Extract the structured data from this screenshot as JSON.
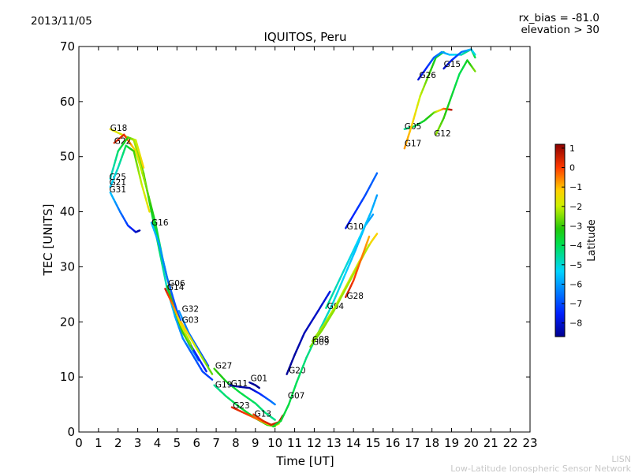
{
  "header": {
    "date": "2013/11/05",
    "rx_bias": "rx_bias = -81.0",
    "elevation": "elevation > 30"
  },
  "footer": {
    "line1": "LISN",
    "line2": "Low-Latitude Ionospheric Sensor Network"
  },
  "colorbar": {
    "label": "Latitude",
    "min": -8.7,
    "max": 1.2,
    "ticks": [
      1,
      0,
      -1,
      -2,
      -3,
      -4,
      -5,
      -6,
      -7,
      -8
    ],
    "tick_labels": [
      "1",
      "0",
      "−1",
      "−2",
      "−3",
      "−4",
      "−5",
      "−6",
      "−7",
      "−8"
    ]
  },
  "chart_data": {
    "type": "scatter",
    "title": "IQUITOS, Peru",
    "xlabel": "Time [UT]",
    "ylabel": "TEC [UNITS]",
    "xlim": [
      0,
      23
    ],
    "ylim": [
      0,
      70
    ],
    "xticks": [
      0,
      1,
      2,
      3,
      4,
      5,
      6,
      7,
      8,
      9,
      10,
      11,
      12,
      13,
      14,
      15,
      16,
      17,
      18,
      19,
      20,
      21,
      22,
      23
    ],
    "xtick_labels": [
      "0",
      "1",
      "2",
      "3",
      "4",
      "5",
      "6",
      "7",
      "8",
      "9",
      "10",
      "11",
      "12",
      "13",
      "14",
      "15",
      "16",
      "17",
      "18",
      "19",
      "20",
      "21",
      "22",
      "23"
    ],
    "yticks": [
      0,
      10,
      20,
      30,
      40,
      50,
      60,
      70
    ],
    "ytick_labels": [
      "0",
      "10",
      "20",
      "30",
      "40",
      "50",
      "60",
      "70"
    ],
    "color_by": "Latitude",
    "series": [
      {
        "name": "G18",
        "label_at": [
          1.6,
          54.7
        ],
        "points": [
          [
            1.6,
            55
          ],
          [
            2.2,
            54
          ],
          [
            2.8,
            53
          ],
          [
            3.3,
            47
          ],
          [
            3.7,
            40
          ],
          [
            4.1,
            33
          ],
          [
            4.5,
            26
          ],
          [
            4.9,
            21
          ],
          [
            5.3,
            17
          ],
          [
            5.8,
            14
          ],
          [
            6.3,
            11
          ],
          [
            6.8,
            9.5
          ]
        ],
        "lats": [
          -1.5,
          -1.8,
          -2.2,
          -2.8,
          -3.5,
          -4.2,
          -5,
          -5.8,
          -6.3,
          -6.8,
          -7,
          -7.2
        ]
      },
      {
        "name": "G22",
        "label_at": [
          1.8,
          52.3
        ],
        "points": [
          [
            1.8,
            52.5
          ],
          [
            2.3,
            54
          ],
          [
            2.9,
            51
          ],
          [
            3.4,
            45
          ],
          [
            3.9,
            38
          ],
          [
            4.3,
            31
          ],
          [
            4.7,
            25
          ],
          [
            5.1,
            20
          ],
          [
            5.6,
            16
          ],
          [
            6.1,
            13
          ]
        ],
        "lats": [
          0.3,
          0.4,
          -1.5,
          -2.5,
          -3.5,
          -4.5,
          -0.3,
          0.3,
          -6,
          -6.5
        ]
      },
      {
        "name": "G25",
        "label_at": [
          1.55,
          45.8
        ],
        "points": [
          [
            1.6,
            46
          ],
          [
            2.0,
            51
          ],
          [
            2.5,
            53.5
          ],
          [
            2.9,
            53
          ],
          [
            3.3,
            48
          ]
        ],
        "lats": [
          -5,
          -4.2,
          -3,
          -2,
          -1.2
        ]
      },
      {
        "name": "G21",
        "label_at": [
          1.55,
          44.8
        ],
        "points": [
          [
            1.6,
            44.5
          ],
          [
            2.0,
            48
          ],
          [
            2.4,
            52
          ],
          [
            2.8,
            51
          ],
          [
            3.2,
            45
          ],
          [
            3.6,
            40
          ]
        ],
        "lats": [
          -5.5,
          -4.8,
          -4,
          -3,
          -2,
          -1.5
        ]
      },
      {
        "name": "G31",
        "label_at": [
          1.55,
          43.5
        ],
        "points": [
          [
            1.6,
            43.5
          ],
          [
            2.1,
            40
          ],
          [
            2.5,
            37.5
          ],
          [
            2.9,
            36.3
          ],
          [
            3.1,
            36.6
          ]
        ],
        "lats": [
          -5.5,
          -6.5,
          -7.2,
          -8,
          -8.5
        ]
      },
      {
        "name": "G16",
        "label_at": [
          3.7,
          37.5
        ],
        "points": [
          [
            3.7,
            38
          ],
          [
            4.1,
            34
          ],
          [
            4.5,
            28
          ],
          [
            5.0,
            22
          ],
          [
            5.5,
            17
          ],
          [
            6.0,
            14
          ],
          [
            6.5,
            11
          ]
        ],
        "lats": [
          -5.5,
          -6,
          -6.5,
          -7,
          -7.3,
          -7.5,
          -7.6
        ]
      },
      {
        "name": "G06",
        "label_at": [
          4.55,
          26.5
        ],
        "points": [
          [
            4.5,
            26.5
          ],
          [
            4.9,
            22
          ],
          [
            5.3,
            18
          ],
          [
            5.8,
            15
          ]
        ],
        "lats": [
          -3.5,
          -3.2,
          -3,
          -2.8
        ]
      },
      {
        "name": "G14",
        "label_at": [
          4.5,
          25.8
        ],
        "points": [
          [
            4.4,
            26
          ],
          [
            4.8,
            23
          ],
          [
            5.2,
            19.5
          ],
          [
            5.7,
            16
          ]
        ],
        "lats": [
          0.6,
          -0.5,
          -1.5,
          -2.5
        ]
      },
      {
        "name": "G32",
        "label_at": [
          5.25,
          21.8
        ],
        "points": [
          [
            5.1,
            22
          ],
          [
            5.6,
            18
          ],
          [
            6.1,
            15
          ],
          [
            6.6,
            12
          ]
        ],
        "lats": [
          -6,
          -6.5,
          -6.8,
          -7
        ]
      },
      {
        "name": "G03",
        "label_at": [
          5.25,
          19.8
        ],
        "points": [
          [
            5.2,
            20
          ],
          [
            5.7,
            17
          ],
          [
            6.2,
            14
          ],
          [
            6.8,
            10.5
          ]
        ],
        "lats": [
          -1,
          -1.6,
          -2.2,
          -2.8
        ]
      },
      {
        "name": "G27",
        "label_at": [
          6.95,
          11.5
        ],
        "points": [
          [
            6.9,
            11.5
          ],
          [
            7.5,
            9.2
          ],
          [
            8.2,
            7.2
          ],
          [
            9.0,
            5.2
          ],
          [
            9.5,
            3.5
          ],
          [
            10.0,
            2.2
          ]
        ],
        "lats": [
          -3,
          -3.4,
          -3.8,
          -4.1,
          -4.3,
          -4.4
        ]
      },
      {
        "name": "G19",
        "label_at": [
          6.95,
          8.1
        ],
        "points": [
          [
            6.9,
            8.5
          ],
          [
            7.5,
            6.5
          ],
          [
            8.2,
            4.5
          ],
          [
            9.0,
            2.5
          ],
          [
            9.6,
            1.3
          ],
          [
            10.0,
            1.0
          ]
        ],
        "lats": [
          -4.5,
          -4.2,
          -3.8,
          -3.3,
          -2.9,
          -2.6
        ]
      },
      {
        "name": "G11",
        "label_at": [
          7.75,
          8.3
        ],
        "points": [
          [
            7.7,
            8.5
          ],
          [
            8.2,
            8.2
          ],
          [
            8.7,
            8.0
          ],
          [
            9.2,
            7.0
          ],
          [
            9.7,
            5.8
          ],
          [
            10.0,
            5.0
          ]
        ],
        "lats": [
          -8.3,
          -8.4,
          -8.5,
          -7.5,
          -6.8,
          -6.3
        ]
      },
      {
        "name": "G01",
        "label_at": [
          8.75,
          9.2
        ],
        "points": [
          [
            8.7,
            9
          ],
          [
            9.0,
            8.5
          ],
          [
            9.2,
            8.0
          ]
        ],
        "lats": [
          -8.5,
          -8.6,
          -8.7
        ]
      },
      {
        "name": "G23",
        "label_at": [
          7.85,
          4.3
        ],
        "points": [
          [
            7.8,
            4.5
          ],
          [
            8.4,
            3.5
          ],
          [
            9.0,
            2.5
          ],
          [
            9.6,
            1.5
          ],
          [
            10.0,
            1.2
          ],
          [
            10.2,
            1.5
          ]
        ],
        "lats": [
          0.4,
          0.2,
          -0.3,
          -0.9,
          -1.4,
          -1.6
        ]
      },
      {
        "name": "G13",
        "label_at": [
          8.95,
          2.8
        ],
        "points": [
          [
            8.9,
            3.2
          ],
          [
            9.4,
            2.0
          ],
          [
            9.8,
            1.3
          ],
          [
            10.2,
            1.8
          ],
          [
            10.4,
            3.0
          ]
        ],
        "lats": [
          0.1,
          0.3,
          0.5,
          0.6,
          0.7
        ]
      },
      {
        "name": "G20",
        "label_at": [
          10.7,
          10.7
        ],
        "points": [
          [
            10.6,
            10.5
          ],
          [
            11.0,
            14
          ],
          [
            11.5,
            18
          ],
          [
            12.2,
            22
          ],
          [
            12.8,
            25.5
          ]
        ],
        "lats": [
          -8.6,
          -8.5,
          -8.3,
          -8.1,
          -7.8
        ]
      },
      {
        "name": "G07",
        "label_at": [
          10.65,
          6.1
        ],
        "points": [
          [
            9.9,
            1.0
          ],
          [
            10.3,
            2.0
          ],
          [
            10.7,
            5.0
          ],
          [
            11.1,
            9.0
          ],
          [
            11.6,
            13.5
          ],
          [
            12.2,
            18
          ],
          [
            12.9,
            23
          ],
          [
            13.5,
            28
          ],
          [
            14.1,
            33
          ],
          [
            14.6,
            37.5
          ],
          [
            15.0,
            39.5
          ]
        ],
        "lats": [
          -3.5,
          -3.6,
          -3.8,
          -4,
          -4.3,
          -4.6,
          -5,
          -5.3,
          -5.6,
          -5.8,
          -6
        ]
      },
      {
        "name": "G04",
        "label_at": [
          12.65,
          22.3
        ],
        "points": [
          [
            12.6,
            22.5
          ],
          [
            13.2,
            27
          ],
          [
            13.8,
            31.5
          ],
          [
            14.4,
            36
          ],
          [
            14.9,
            40
          ],
          [
            15.2,
            43
          ]
        ],
        "lats": [
          -4.5,
          -4.8,
          -5.1,
          -5.4,
          -5.7,
          -6
        ]
      },
      {
        "name": "G08",
        "label_at": [
          11.9,
          16.3
        ],
        "points": [
          [
            11.9,
            16.5
          ],
          [
            12.5,
            19.5
          ],
          [
            13.1,
            23
          ],
          [
            13.7,
            27
          ],
          [
            14.3,
            31
          ],
          [
            14.9,
            34.5
          ],
          [
            15.2,
            36
          ]
        ],
        "lats": [
          -2.4,
          -2.2,
          -2.0,
          -1.8,
          -1.6,
          -1.4,
          -1.2
        ]
      },
      {
        "name": "G09",
        "label_at": [
          11.9,
          15.8
        ],
        "points": [
          [
            11.8,
            15.5
          ],
          [
            12.4,
            18.5
          ],
          [
            13.0,
            22
          ],
          [
            13.6,
            26
          ],
          [
            14.2,
            30
          ],
          [
            14.8,
            34
          ]
        ],
        "lats": [
          -2.6,
          -2.5,
          -2.4,
          -2.3,
          -2.2,
          -2.1
        ]
      },
      {
        "name": "G28",
        "label_at": [
          13.65,
          24.2
        ],
        "points": [
          [
            13.6,
            24.5
          ],
          [
            14.0,
            27.5
          ],
          [
            14.4,
            31.5
          ],
          [
            14.8,
            35.5
          ]
        ],
        "lats": [
          0.6,
          0.1,
          -0.4,
          -0.9
        ]
      },
      {
        "name": "G10",
        "label_at": [
          13.65,
          36.8
        ],
        "points": [
          [
            13.6,
            37
          ],
          [
            14.1,
            40
          ],
          [
            14.6,
            43
          ],
          [
            15.2,
            47
          ]
        ],
        "lats": [
          -7.8,
          -7.4,
          -7.0,
          -6.6
        ]
      },
      {
        "name": "G05",
        "label_at": [
          16.6,
          55.0
        ],
        "points": [
          [
            16.6,
            55
          ],
          [
            17.1,
            55.5
          ],
          [
            17.6,
            56.5
          ],
          [
            18.1,
            58
          ],
          [
            18.6,
            58.7
          ],
          [
            19.0,
            58.5
          ]
        ],
        "lats": [
          -4.5,
          -4,
          -3.5,
          -2.8,
          -0.5,
          0.8
        ]
      },
      {
        "name": "G17",
        "label_at": [
          16.6,
          51.9
        ],
        "points": [
          [
            16.6,
            51.5
          ],
          [
            17.0,
            56
          ],
          [
            17.4,
            61
          ],
          [
            17.8,
            64.5
          ],
          [
            18.2,
            68
          ],
          [
            18.6,
            69
          ]
        ],
        "lats": [
          -0.7,
          -1.2,
          -2.0,
          -2.8,
          -3.5,
          -4.0
        ]
      },
      {
        "name": "G26",
        "label_at": [
          17.35,
          64.3
        ],
        "points": [
          [
            17.3,
            64
          ],
          [
            17.7,
            66
          ],
          [
            18.1,
            68
          ],
          [
            18.5,
            69
          ],
          [
            18.9,
            68.5
          ],
          [
            19.5,
            68.5
          ],
          [
            20.0,
            69.5
          ],
          [
            20.2,
            68
          ]
        ],
        "lats": [
          -8.0,
          -7.5,
          -6.8,
          -6.2,
          -5.6,
          -4.8,
          -4.2,
          -3.8
        ]
      },
      {
        "name": "G15",
        "label_at": [
          18.6,
          66.3
        ],
        "points": [
          [
            18.6,
            66
          ],
          [
            19.0,
            67.5
          ],
          [
            19.5,
            69
          ],
          [
            20.0,
            69.5
          ],
          [
            20.2,
            68.5
          ]
        ],
        "lats": [
          -8.2,
          -7.6,
          -6.6,
          -5.6,
          -5.0
        ]
      },
      {
        "name": "G12",
        "label_at": [
          18.1,
          53.7
        ],
        "points": [
          [
            18.2,
            54
          ],
          [
            18.6,
            57
          ],
          [
            19.0,
            61
          ],
          [
            19.4,
            65
          ],
          [
            19.8,
            67.5
          ],
          [
            20.2,
            65.5
          ]
        ],
        "lats": [
          -2.3,
          -3.0,
          -3.6,
          -4.0,
          -3.5,
          -2.5
        ]
      }
    ]
  }
}
